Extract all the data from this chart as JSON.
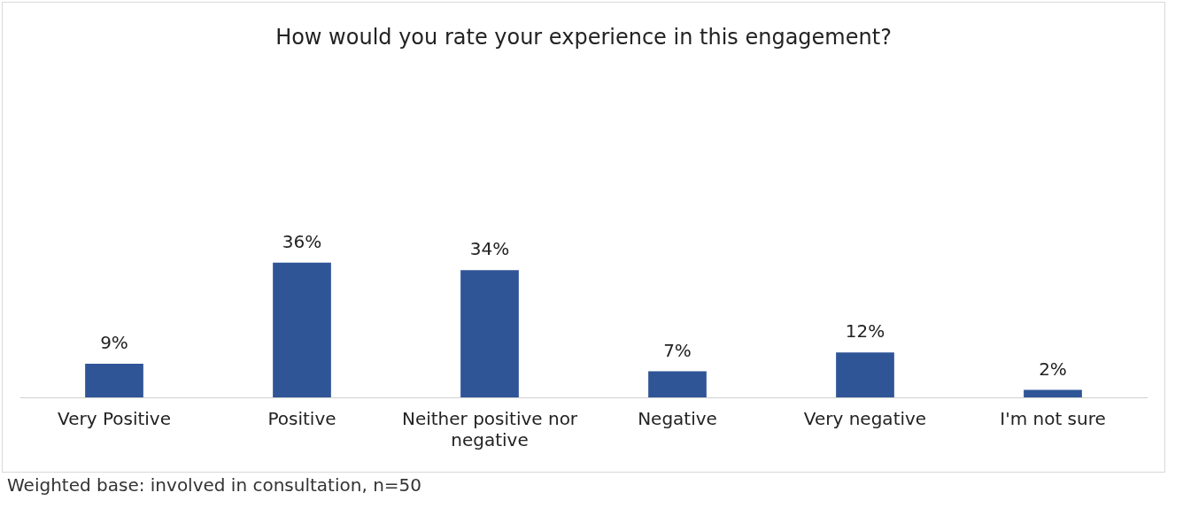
{
  "chart_data": {
    "type": "bar",
    "title": "How would you rate your experience in this engagement?",
    "categories": [
      "Very Positive",
      "Positive",
      "Neither positive nor negative",
      "Negative",
      "Very negative",
      "I'm not sure"
    ],
    "values": [
      9,
      36,
      34,
      7,
      12,
      2
    ],
    "value_labels": [
      "9%",
      "36%",
      "34%",
      "7%",
      "12%",
      "2%"
    ],
    "color": "#2f5597",
    "annotations": [
      "Weighted base: involved in consultation, n=50"
    ]
  }
}
